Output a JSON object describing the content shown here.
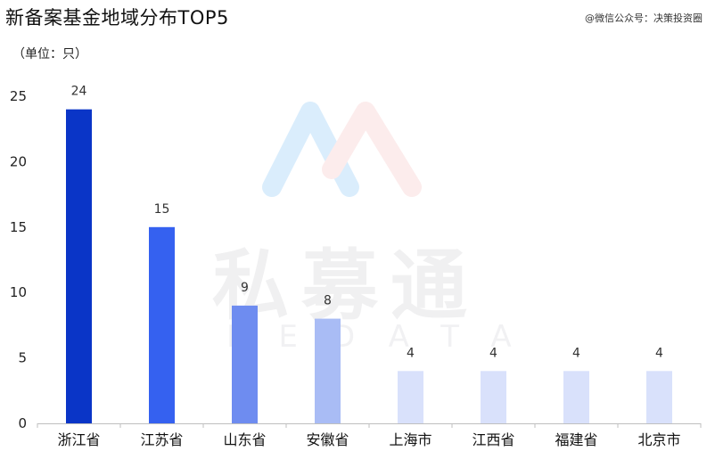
{
  "header": {
    "title": "新备案基金地域分布TOP5",
    "source": "@微信公众号：决策投资圈",
    "unit_label": "（单位：只）"
  },
  "watermark": {
    "brand_cn": "私募通",
    "brand_en": "PEDATA"
  },
  "chart_data": {
    "type": "bar",
    "title": "新备案基金地域分布TOP5",
    "xlabel": "",
    "ylabel": "（单位：只）",
    "categories": [
      "浙江省",
      "江苏省",
      "山东省",
      "安徽省",
      "上海市",
      "江西省",
      "福建省",
      "北京市"
    ],
    "values": [
      24,
      15,
      9,
      8,
      4,
      4,
      4,
      4
    ],
    "ylim": [
      0,
      25
    ],
    "yticks": [
      0,
      5,
      10,
      15,
      20,
      25
    ],
    "grid": false,
    "legend": "none",
    "bar_colors": [
      "#0A35C7",
      "#3561F0",
      "#6E8CF0",
      "#A9BCF5",
      "#D9E1FB",
      "#D9E1FB",
      "#D9E1FB",
      "#D9E1FB"
    ]
  }
}
